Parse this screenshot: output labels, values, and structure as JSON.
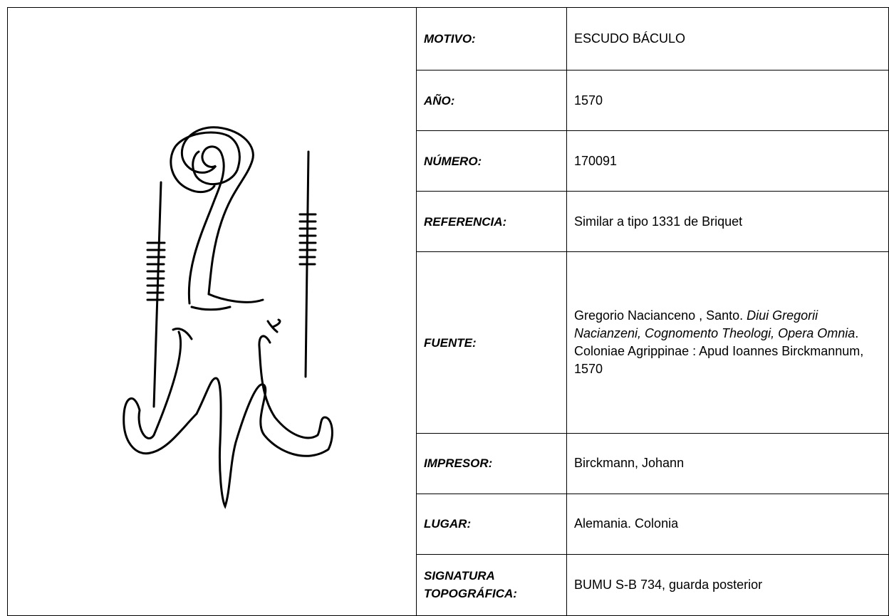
{
  "table": {
    "rows": [
      {
        "label": "MOTIVO:",
        "value": "ESCUDO BÁCULO"
      },
      {
        "label": "AÑO:",
        "value": "1570"
      },
      {
        "label": "NÚMERO:",
        "value": "170091"
      },
      {
        "label": "REFERENCIA:",
        "value": "Similar a tipo 1331 de Briquet"
      },
      {
        "label": "FUENTE:",
        "value": [
          {
            "text": "Gregorio Nacianceno , Santo. ",
            "italic": false
          },
          {
            "text": "Diui Gregorii Nacianzeni, Cognomento Theologi, Opera Omnia",
            "italic": true
          },
          {
            "text": ". Coloniae Agrippinae : Apud Ioannes Birckmannum, 1570",
            "italic": false
          }
        ]
      },
      {
        "label": "IMPRESOR:",
        "value": "Birckmann, Johann"
      },
      {
        "label": "LUGAR:",
        "value": "Alemania. Colonia"
      },
      {
        "label": "SIGNATURA TOPOGRÁFICA:",
        "value": "BUMU S-B 734, guarda posterior"
      }
    ]
  }
}
